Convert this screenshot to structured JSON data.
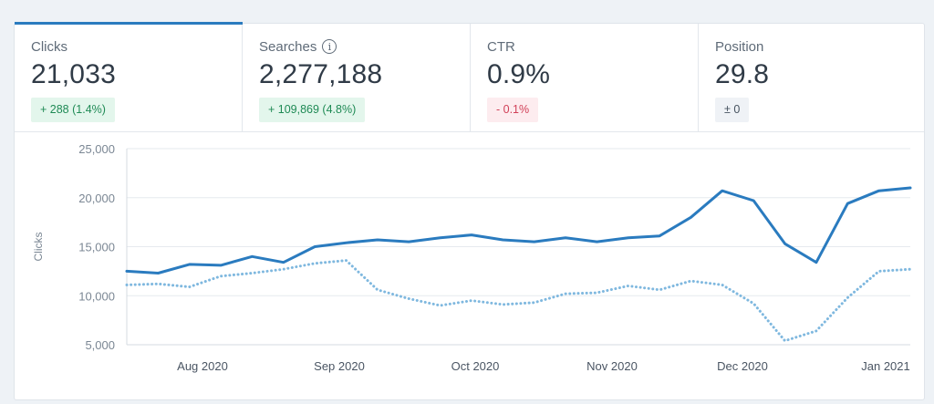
{
  "metrics": [
    {
      "label": "Clicks",
      "value": "21,033",
      "change": "+ 288 (1.4%)",
      "trend": "up",
      "active": true,
      "info": false
    },
    {
      "label": "Searches",
      "value": "2,277,188",
      "change": "+ 109,869 (4.8%)",
      "trend": "up",
      "active": false,
      "info": true
    },
    {
      "label": "CTR",
      "value": "0.9%",
      "change": "- 0.1%",
      "trend": "down",
      "active": false,
      "info": false
    },
    {
      "label": "Position",
      "value": "29.8",
      "change": "± 0",
      "trend": "neutral",
      "active": false,
      "info": false
    }
  ],
  "colors": {
    "accent": "#2a7bbf",
    "dotted_series": "#7fb8df",
    "up": "#1f8a55",
    "down": "#d13f57"
  },
  "chart_data": {
    "type": "line",
    "ylabel": "Clicks",
    "ylim": [
      5000,
      25000
    ],
    "y_ticks": [
      5000,
      10000,
      15000,
      20000,
      25000
    ],
    "y_tick_labels": [
      "5,000",
      "10,000",
      "15,000",
      "20,000",
      "25,000"
    ],
    "x_ticks": [
      "Aug 2020",
      "Sep 2020",
      "Oct 2020",
      "Nov 2020",
      "Dec 2020",
      "Jan 2021"
    ],
    "grid": "horizontal",
    "series": [
      {
        "style": "solid",
        "values": [
          12500,
          12300,
          13200,
          13100,
          14000,
          13400,
          15000,
          15400,
          15700,
          15500,
          15900,
          16200,
          15700,
          15500,
          15900,
          15500,
          15900,
          16100,
          18000,
          20700,
          19700,
          15300,
          13400,
          19400,
          20700,
          21000
        ]
      },
      {
        "style": "dotted",
        "values": [
          11100,
          11200,
          10900,
          12000,
          12300,
          12700,
          13300,
          13600,
          10600,
          9700,
          9000,
          9500,
          9100,
          9300,
          10200,
          10300,
          11000,
          10600,
          11500,
          11100,
          9200,
          5400,
          6400,
          9800,
          12500,
          12700
        ]
      }
    ]
  }
}
